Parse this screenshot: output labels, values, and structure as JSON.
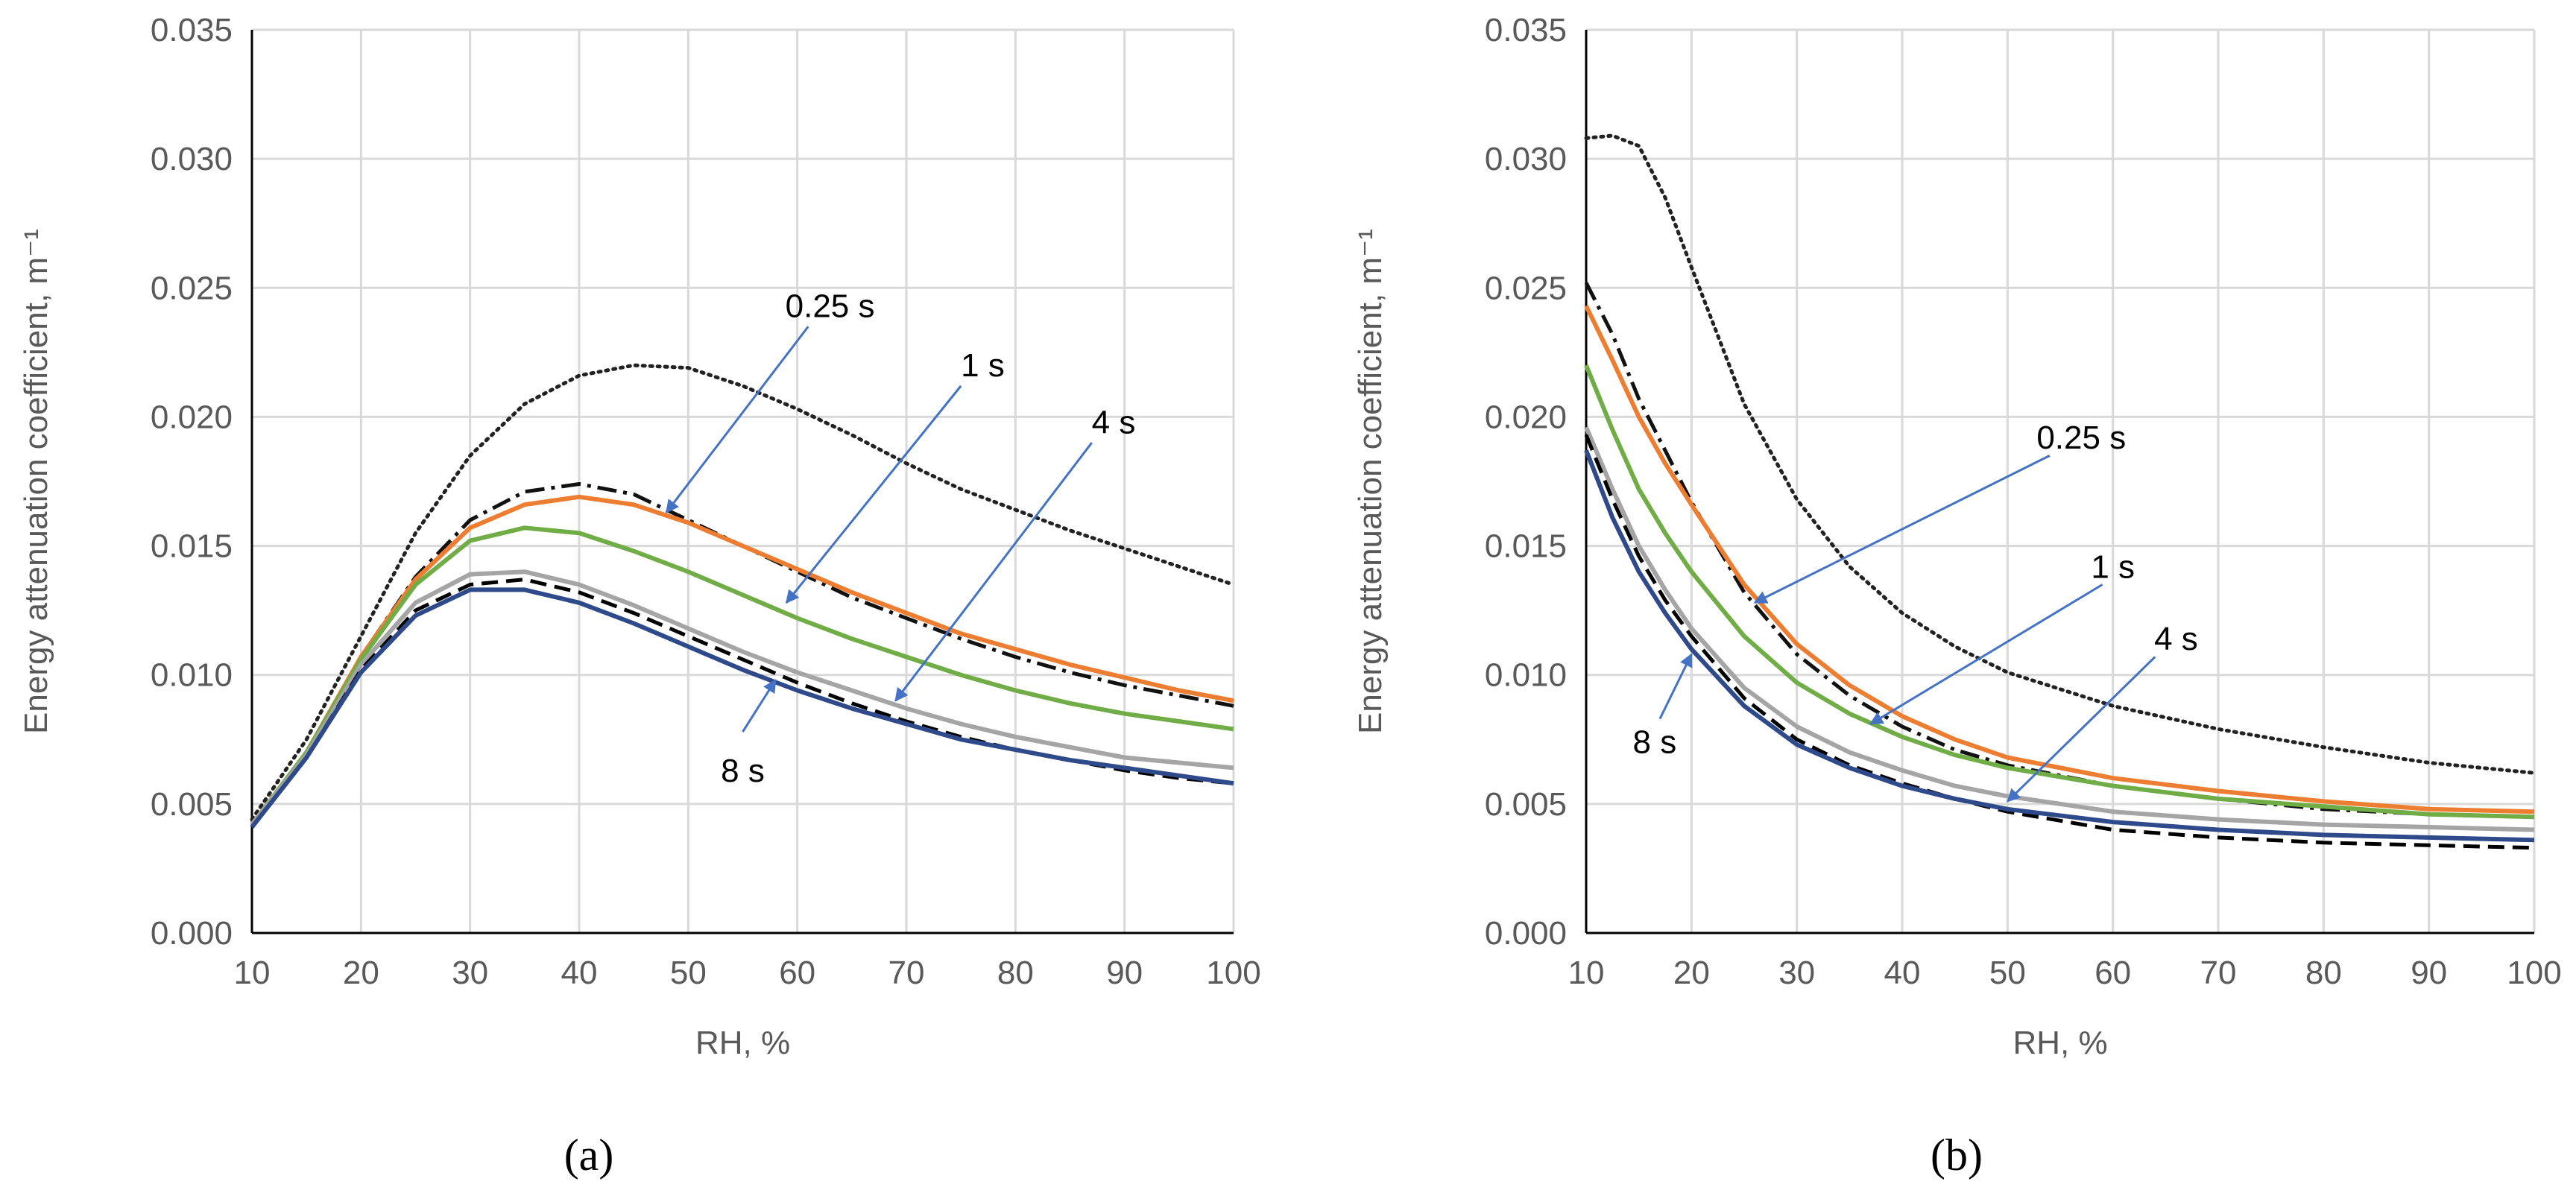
{
  "figure": {
    "panels": [
      "(a)",
      "(b)"
    ]
  },
  "chart_data": [
    {
      "id": "a",
      "type": "line",
      "panel_label": "(a)",
      "xlabel": "RH, %",
      "ylabel": "Energy attenuation coefficient, m⁻¹",
      "xlim": [
        10,
        100
      ],
      "ylim": [
        0,
        0.035
      ],
      "x_ticks": [
        "10",
        "20",
        "30",
        "40",
        "50",
        "60",
        "70",
        "80",
        "90",
        "100"
      ],
      "y_ticks": [
        "0.000",
        "0.005",
        "0.010",
        "0.015",
        "0.020",
        "0.025",
        "0.030",
        "0.035"
      ],
      "grid": true,
      "x": [
        10,
        15,
        20,
        25,
        30,
        35,
        40,
        45,
        50,
        55,
        60,
        65,
        70,
        75,
        80,
        85,
        90,
        95,
        100
      ],
      "series": [
        {
          "name": "dotted reference",
          "color": "#222222",
          "style": "dotted",
          "values": [
            0.0044,
            0.0075,
            0.0115,
            0.0155,
            0.0185,
            0.0205,
            0.0216,
            0.022,
            0.0219,
            0.0212,
            0.0203,
            0.0193,
            0.0182,
            0.0172,
            0.0164,
            0.0156,
            0.0149,
            0.0142,
            0.0135
          ]
        },
        {
          "name": "dash-dot reference",
          "color": "#111111",
          "style": "dashdot",
          "values": [
            0.0042,
            0.007,
            0.0107,
            0.0138,
            0.016,
            0.0171,
            0.0174,
            0.017,
            0.016,
            0.015,
            0.014,
            0.013,
            0.0122,
            0.0114,
            0.0107,
            0.0101,
            0.0096,
            0.0092,
            0.0088
          ]
        },
        {
          "name": "0.25 s",
          "color": "#ED7D31",
          "style": "solid",
          "values": [
            0.0042,
            0.007,
            0.0107,
            0.0137,
            0.0157,
            0.0166,
            0.0169,
            0.0166,
            0.0159,
            0.015,
            0.0141,
            0.0132,
            0.0124,
            0.0116,
            0.011,
            0.0104,
            0.0099,
            0.0094,
            0.009
          ]
        },
        {
          "name": "1 s",
          "color": "#70AD47",
          "style": "solid",
          "values": [
            0.0042,
            0.007,
            0.0106,
            0.0135,
            0.0152,
            0.0157,
            0.0155,
            0.0148,
            0.014,
            0.0131,
            0.0122,
            0.0114,
            0.0107,
            0.01,
            0.0094,
            0.0089,
            0.0085,
            0.0082,
            0.0079
          ]
        },
        {
          "name": "4 s",
          "color": "#A5A5A5",
          "style": "solid",
          "values": [
            0.0042,
            0.0069,
            0.0104,
            0.0128,
            0.0139,
            0.014,
            0.0135,
            0.0127,
            0.0118,
            0.0109,
            0.0101,
            0.0094,
            0.0087,
            0.0081,
            0.0076,
            0.0072,
            0.0068,
            0.0066,
            0.0064
          ]
        },
        {
          "name": "dashed reference",
          "color": "#000000",
          "style": "dashed",
          "values": [
            0.0041,
            0.0068,
            0.0102,
            0.0125,
            0.0135,
            0.0137,
            0.0132,
            0.0124,
            0.0115,
            0.0106,
            0.0097,
            0.0089,
            0.0082,
            0.0076,
            0.0071,
            0.0067,
            0.0063,
            0.006,
            0.0058
          ]
        },
        {
          "name": "8 s",
          "color": "#2F4A8A",
          "style": "solid",
          "values": [
            0.0041,
            0.0068,
            0.0101,
            0.0123,
            0.0133,
            0.0133,
            0.0128,
            0.012,
            0.0111,
            0.0102,
            0.0094,
            0.0087,
            0.0081,
            0.0075,
            0.0071,
            0.0067,
            0.0064,
            0.0061,
            0.0058
          ]
        }
      ],
      "annotations": [
        {
          "text": "0.25 s",
          "label_x": 63,
          "label_y": 0.0243,
          "arrow_from": [
            61,
            0.0235
          ],
          "arrow_to": [
            48,
            0.0163
          ]
        },
        {
          "text": "1 s",
          "label_x": 77,
          "label_y": 0.022,
          "arrow_from": [
            75,
            0.0212
          ],
          "arrow_to": [
            59,
            0.0128
          ]
        },
        {
          "text": "4 s",
          "label_x": 89,
          "label_y": 0.0198,
          "arrow_from": [
            87,
            0.019
          ],
          "arrow_to": [
            69,
            0.009
          ]
        },
        {
          "text": "8 s",
          "label_x": 55,
          "label_y": 0.0063,
          "arrow_from": [
            55,
            0.0078
          ],
          "arrow_to": [
            58,
            0.0098
          ]
        }
      ]
    },
    {
      "id": "b",
      "type": "line",
      "panel_label": "(b)",
      "xlabel": "RH, %",
      "ylabel": "Energy attenuation coefficient, m⁻¹",
      "xlim": [
        10,
        100
      ],
      "ylim": [
        0,
        0.035
      ],
      "x_ticks": [
        "10",
        "20",
        "30",
        "40",
        "50",
        "60",
        "70",
        "80",
        "90",
        "100"
      ],
      "y_ticks": [
        "0.000",
        "0.005",
        "0.010",
        "0.015",
        "0.020",
        "0.025",
        "0.030",
        "0.035"
      ],
      "grid": true,
      "x": [
        10,
        12.5,
        15,
        17.5,
        20,
        25,
        30,
        35,
        40,
        45,
        50,
        60,
        70,
        80,
        90,
        100
      ],
      "series": [
        {
          "name": "dotted reference",
          "color": "#222222",
          "style": "dotted",
          "values": [
            0.0308,
            0.0309,
            0.0305,
            0.0285,
            0.0258,
            0.0205,
            0.0168,
            0.0142,
            0.0124,
            0.0111,
            0.0101,
            0.0088,
            0.0079,
            0.0072,
            0.0066,
            0.0062
          ]
        },
        {
          "name": "dash-dot reference",
          "color": "#111111",
          "style": "dashdot",
          "values": [
            0.0252,
            0.0232,
            0.0207,
            0.0187,
            0.0167,
            0.0132,
            0.0108,
            0.0092,
            0.008,
            0.0071,
            0.0065,
            0.0057,
            0.0052,
            0.0048,
            0.0046,
            0.0045
          ]
        },
        {
          "name": "0.25 s",
          "color": "#ED7D31",
          "style": "solid",
          "values": [
            0.0243,
            0.0222,
            0.02,
            0.0182,
            0.0166,
            0.0135,
            0.0112,
            0.0096,
            0.0084,
            0.0075,
            0.0068,
            0.006,
            0.0055,
            0.0051,
            0.0048,
            0.0047
          ]
        },
        {
          "name": "1 s",
          "color": "#70AD47",
          "style": "solid",
          "values": [
            0.022,
            0.0195,
            0.0172,
            0.0155,
            0.014,
            0.0115,
            0.0097,
            0.0085,
            0.0076,
            0.0069,
            0.0064,
            0.0057,
            0.0052,
            0.0049,
            0.0046,
            0.0045
          ]
        },
        {
          "name": "4 s",
          "color": "#A5A5A5",
          "style": "solid",
          "values": [
            0.0196,
            0.0172,
            0.015,
            0.0133,
            0.0118,
            0.0095,
            0.008,
            0.007,
            0.0063,
            0.0057,
            0.0053,
            0.0047,
            0.0044,
            0.0042,
            0.0041,
            0.004
          ]
        },
        {
          "name": "dashed reference",
          "color": "#000000",
          "style": "dashed",
          "values": [
            0.0193,
            0.0168,
            0.0146,
            0.0129,
            0.0115,
            0.0091,
            0.0075,
            0.0065,
            0.0058,
            0.0052,
            0.0047,
            0.004,
            0.0037,
            0.0035,
            0.0034,
            0.0033
          ]
        },
        {
          "name": "8 s",
          "color": "#2F4A8A",
          "style": "solid",
          "values": [
            0.0187,
            0.0161,
            0.014,
            0.0124,
            0.011,
            0.0088,
            0.0073,
            0.0064,
            0.0057,
            0.0052,
            0.0048,
            0.0043,
            0.004,
            0.0038,
            0.0037,
            0.0036
          ]
        }
      ],
      "annotations": [
        {
          "text": "0.25 s",
          "label_x": 57,
          "label_y": 0.0192,
          "arrow_from": [
            54,
            0.0185
          ],
          "arrow_to": [
            26,
            0.0128
          ]
        },
        {
          "text": "1 s",
          "label_x": 60,
          "label_y": 0.0142,
          "arrow_from": [
            59,
            0.0135
          ],
          "arrow_to": [
            37,
            0.0081
          ]
        },
        {
          "text": "4 s",
          "label_x": 66,
          "label_y": 0.0114,
          "arrow_from": [
            64,
            0.0107
          ],
          "arrow_to": [
            50,
            0.0051
          ]
        },
        {
          "text": "8 s",
          "label_x": 16.5,
          "label_y": 0.0074,
          "arrow_from": [
            17,
            0.0083
          ],
          "arrow_to": [
            20,
            0.0108
          ]
        }
      ]
    }
  ]
}
